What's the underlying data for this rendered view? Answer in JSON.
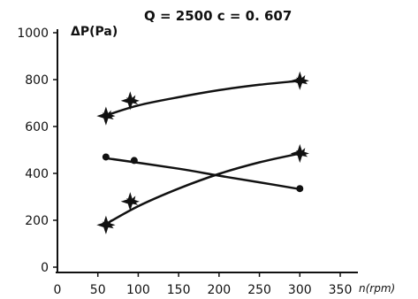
{
  "chart_data": {
    "type": "scatter",
    "title": "Q = 2500 c = 0. 607",
    "ylabel": "ΔP(Pa)",
    "xlabel": "n(rpm)",
    "xlim": [
      0,
      350
    ],
    "ylim": [
      0,
      1000
    ],
    "x_ticks": [
      "0",
      "50",
      "100",
      "150",
      "200",
      "250",
      "300",
      "350"
    ],
    "x_tick_values": [
      0,
      50,
      100,
      150,
      200,
      250,
      300,
      350
    ],
    "y_ticks": [
      "0",
      "200",
      "400",
      "600",
      "800",
      "1000"
    ],
    "y_tick_values": [
      0,
      200,
      400,
      600,
      800,
      1000
    ],
    "series": [
      {
        "marker": "star",
        "points": [
          [
            60,
            645
          ],
          [
            90,
            710
          ],
          [
            300,
            795
          ]
        ],
        "curve": [
          [
            58,
            645
          ],
          [
            100,
            690
          ],
          [
            150,
            725
          ],
          [
            200,
            755
          ],
          [
            250,
            778
          ],
          [
            300,
            795
          ]
        ]
      },
      {
        "marker": "dot",
        "points": [
          [
            60,
            470
          ],
          [
            95,
            455
          ],
          [
            300,
            335
          ]
        ],
        "curve": [
          [
            60,
            465
          ],
          [
            150,
            420
          ],
          [
            200,
            390
          ],
          [
            250,
            362
          ],
          [
            300,
            333
          ]
        ]
      },
      {
        "marker": "star",
        "points": [
          [
            60,
            180
          ],
          [
            90,
            280
          ],
          [
            300,
            485
          ]
        ],
        "curve": [
          [
            58,
            180
          ],
          [
            100,
            260
          ],
          [
            150,
            335
          ],
          [
            200,
            398
          ],
          [
            250,
            447
          ],
          [
            300,
            485
          ]
        ]
      }
    ]
  }
}
